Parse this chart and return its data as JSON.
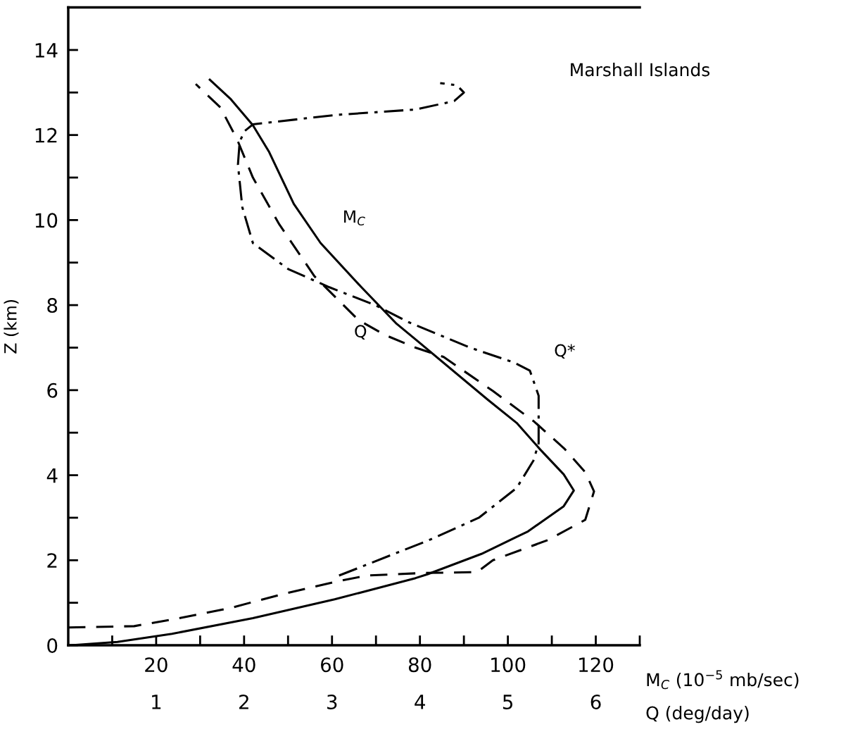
{
  "chart_data": {
    "type": "line",
    "xlabel": "M$_{C}$ (10$^{−5}$ mb/sec)",
    "x2label": "Q (deg/day)",
    "ylabel": "Z (km)",
    "annotations": [
      "Marshall Islands"
    ],
    "xlim": [
      0,
      130
    ],
    "xticks": [
      {
        "value": 10,
        "label": null
      },
      20,
      {
        "value": 30,
        "label": null
      },
      40,
      {
        "value": 50,
        "label": null
      },
      60,
      {
        "value": 70,
        "label": null
      },
      80,
      {
        "value": 90,
        "label": null
      },
      100,
      {
        "value": 110,
        "label": null
      },
      120,
      {
        "value": 130,
        "label": null
      }
    ],
    "x2lim": [
      0,
      6.5
    ],
    "x2ticks": [
      1,
      2,
      3,
      4,
      5,
      6
    ],
    "ylim": [
      0,
      15
    ],
    "yticks": [
      0,
      {
        "value": 1,
        "label": null
      },
      2,
      {
        "value": 3,
        "label": null
      },
      4,
      {
        "value": 5,
        "label": null
      },
      6,
      {
        "value": 7,
        "label": null
      },
      8,
      {
        "value": 9,
        "label": null
      },
      10,
      {
        "value": 11,
        "label": null
      },
      12,
      {
        "value": 13,
        "label": null
      },
      14
    ],
    "grid": false,
    "legend": false,
    "series": [
      {
        "name": "M$_{C}$",
        "color": "#000000",
        "line_style": "solid",
        "x": [
          0.6,
          11.2,
          23.6,
          42,
          60.6,
          79,
          81.7,
          94,
          104.6,
          112.7,
          115,
          112.7,
          107.4,
          102,
          95.5,
          79.5,
          74.7,
          66.7,
          57.4,
          51.3,
          45.7,
          42,
          37,
          32.2
        ],
        "values": [
          0,
          0.08,
          0.27,
          0.64,
          1.08,
          1.58,
          1.67,
          2.15,
          2.68,
          3.27,
          3.64,
          4.02,
          4.6,
          5.23,
          5.77,
          7.15,
          7.56,
          8.42,
          9.46,
          10.38,
          11.6,
          12.23,
          12.84,
          13.3
        ]
      },
      {
        "name": "Q",
        "color": "#000000",
        "line_style": "dashed",
        "axis": "x2",
        "x": [
          0,
          0.75,
          1.22,
          1.85,
          2.43,
          3.05,
          3.4,
          4.03,
          4.65,
          4.83,
          5.45,
          5.88,
          5.98,
          5.88,
          5.64,
          5.3,
          4.83,
          4.27,
          3.95,
          3.6,
          3.3,
          2.8,
          2.4,
          2.1,
          1.92,
          1.73,
          1.45
        ],
        "values": [
          0.42,
          0.45,
          0.62,
          0.88,
          1.2,
          1.5,
          1.64,
          1.7,
          1.72,
          2.0,
          2.47,
          2.95,
          3.62,
          4.07,
          4.63,
          5.26,
          5.98,
          6.78,
          7.0,
          7.3,
          7.65,
          8.68,
          9.9,
          11.0,
          11.9,
          12.65,
          13.2
        ]
      },
      {
        "name": "Q*",
        "color": "#000000",
        "line_style": "dashdot",
        "axis": "x2",
        "x": [
          3.08,
          4.1,
          4.67,
          5.1,
          5.29,
          5.35,
          5.35,
          5.35,
          5.25,
          5.07,
          4.57,
          3.87,
          3.49,
          2.97,
          2.5,
          2.1,
          1.98,
          1.93,
          1.95,
          2.01,
          2.1,
          3.03,
          3.95,
          4.39,
          4.5,
          4.42,
          4.23
        ],
        "values": [
          1.64,
          2.47,
          3.0,
          3.7,
          4.34,
          4.75,
          5.6,
          5.87,
          6.46,
          6.65,
          7.0,
          7.6,
          8.0,
          8.42,
          8.85,
          9.46,
          10.3,
          11.3,
          11.85,
          12.1,
          12.25,
          12.47,
          12.6,
          12.8,
          13.0,
          13.17,
          13.22
        ]
      }
    ]
  }
}
